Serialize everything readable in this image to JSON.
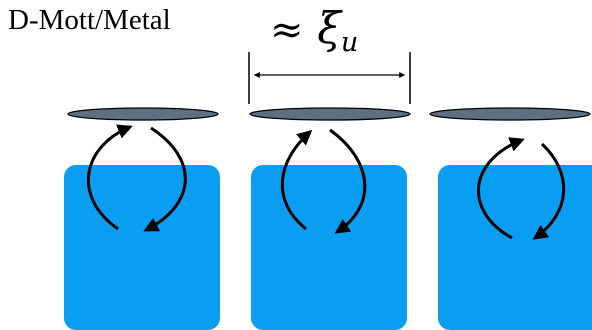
{
  "title": "D-Mott/Metal",
  "scale_label": {
    "symbol": "≈",
    "variable": "ξ",
    "subscript": "u"
  },
  "colors": {
    "block_fill": "#0a9ef2",
    "ellipse_fill": "#5d6f80",
    "ellipse_stroke": "#000000",
    "arrow_stroke": "#000000"
  }
}
